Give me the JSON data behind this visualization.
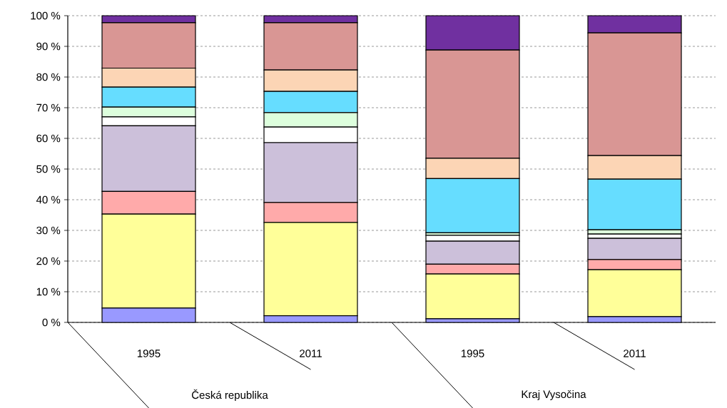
{
  "chart_data": {
    "type": "bar",
    "stacked": true,
    "grid": "y",
    "categories": [
      "1995",
      "2011",
      "1995",
      "2011"
    ],
    "annotations": [
      "Česká republika",
      "Kraj Vysočina"
    ],
    "ylim": [
      0,
      100
    ],
    "yticks": [
      {
        "value": 0,
        "label": "0 %"
      },
      {
        "value": 10,
        "label": "10 %"
      },
      {
        "value": 20,
        "label": "20 %"
      },
      {
        "value": 30,
        "label": "30 %"
      },
      {
        "value": 40,
        "label": "40 %"
      },
      {
        "value": 50,
        "label": "50 %"
      },
      {
        "value": 60,
        "label": "60 %"
      },
      {
        "value": 70,
        "label": "70 %"
      },
      {
        "value": 80,
        "label": "80 %"
      },
      {
        "value": 90,
        "label": "90 %"
      },
      {
        "value": 100,
        "label": "100 %"
      }
    ],
    "series": [
      {
        "color": "#9999ff",
        "values": [
          4.7,
          2.2,
          1.2,
          1.9
        ]
      },
      {
        "color": "#ffff99",
        "values": [
          30.6,
          30.4,
          14.6,
          15.3
        ]
      },
      {
        "color": "#ffaaaa",
        "values": [
          7.4,
          6.5,
          3.2,
          3.3
        ]
      },
      {
        "color": "#ccc0da",
        "values": [
          21.4,
          19.5,
          7.5,
          6.9
        ]
      },
      {
        "color": "#ffffff",
        "values": [
          2.9,
          5.1,
          1.9,
          1.4
        ]
      },
      {
        "color": "#ddffdd",
        "values": [
          3.2,
          4.7,
          0.8,
          1.4
        ]
      },
      {
        "color": "#66ddff",
        "values": [
          6.5,
          6.9,
          17.7,
          16.5
        ]
      },
      {
        "color": "#fcd5b5",
        "values": [
          6.2,
          7.0,
          6.6,
          7.7
        ]
      },
      {
        "color": "#d99694",
        "values": [
          14.8,
          15.4,
          35.3,
          40.0
        ]
      },
      {
        "color": "#7030a0",
        "values": [
          2.3,
          2.3,
          11.2,
          5.6
        ]
      }
    ]
  }
}
